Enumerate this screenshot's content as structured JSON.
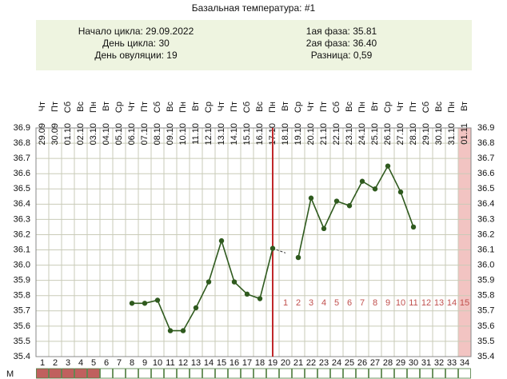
{
  "chart_data": {
    "type": "line",
    "title": "Базальная температура: #1",
    "info_left": [
      "Начало цикла: 29.09.2022",
      "День цикла: 30",
      "День овуляции: 19"
    ],
    "info_right": [
      "1ая фаза: 35.81",
      "2ая фаза: 36.40",
      "Разница: 0,59"
    ],
    "x": [
      1,
      2,
      3,
      4,
      5,
      6,
      7,
      8,
      9,
      10,
      11,
      12,
      13,
      14,
      15,
      16,
      17,
      18,
      19,
      20,
      21,
      22,
      23,
      24,
      25,
      26,
      27,
      28,
      29,
      30,
      31,
      32,
      33,
      34
    ],
    "weekdays": [
      "Чт",
      "Пт",
      "Сб",
      "Вс",
      "Пн",
      "Вт",
      "Ср",
      "Чт",
      "Пт",
      "Сб",
      "Вс",
      "Пн",
      "Вт",
      "Ср",
      "Чт",
      "Пт",
      "Сб",
      "Вс",
      "Пн",
      "Вт",
      "Ср",
      "Чт",
      "Пт",
      "Сб",
      "Вс",
      "Пн",
      "Вт",
      "Ср",
      "Чт",
      "Пт",
      "Сб",
      "Вс",
      "Пн",
      "Вт"
    ],
    "dates": [
      "29.09",
      "30.09",
      "01.10",
      "02.10",
      "03.10",
      "04.10",
      "05.10",
      "06.10",
      "07.10",
      "08.10",
      "09.10",
      "10.10",
      "11.10",
      "12.10",
      "13.10",
      "14.10",
      "15.10",
      "16.10",
      "17.10",
      "18.10",
      "19.10",
      "20.10",
      "21.10",
      "22.10",
      "23.10",
      "24.10",
      "25.10",
      "26.10",
      "27.10",
      "28.10",
      "29.10",
      "30.10",
      "31.10",
      "01.11"
    ],
    "series": [
      {
        "color": "#2f5a1e",
        "values": [
          null,
          null,
          null,
          null,
          null,
          null,
          null,
          35.75,
          35.75,
          35.77,
          35.57,
          35.57,
          35.72,
          35.89,
          36.16,
          35.89,
          35.81,
          35.78,
          36.11,
          null,
          36.05,
          36.44,
          36.24,
          36.42,
          36.39,
          36.55,
          36.5,
          36.65,
          36.48,
          36.25,
          null,
          null,
          null,
          null
        ]
      }
    ],
    "ovulation_day": 19,
    "ovulation_color": "#c0282a",
    "phase2_days": [
      1,
      2,
      3,
      4,
      5,
      6,
      7,
      8,
      9,
      10,
      11,
      12,
      13,
      14,
      15
    ],
    "phase2_label_value": 35.75,
    "highlight_day": 34,
    "menstruation_label": "М",
    "menstruation_days": [
      1,
      2,
      3,
      4,
      5
    ],
    "xlim": [
      0.5,
      34.5
    ],
    "ylim": [
      35.4,
      36.9
    ],
    "yticks": [
      35.4,
      35.5,
      35.6,
      35.7,
      35.8,
      35.9,
      {
        "value": 36,
        "label": "36.0"
      },
      36.1,
      36.2,
      36.3,
      36.4,
      36.5,
      36.6,
      36.7,
      36.8,
      36.9
    ],
    "grid": true
  }
}
